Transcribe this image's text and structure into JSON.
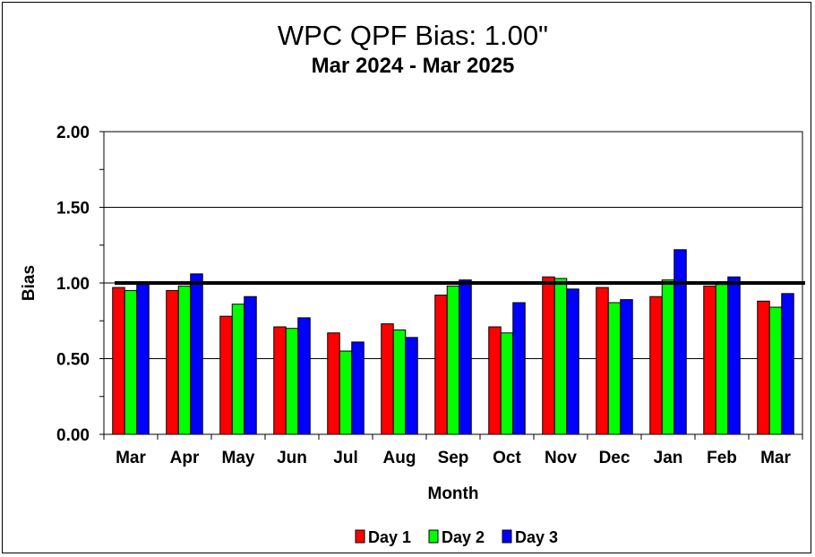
{
  "chart_data": {
    "type": "bar",
    "title": "WPC QPF Bias:  1.00\"",
    "subtitle": "Mar 2024 - Mar 2025",
    "xlabel": "Month",
    "ylabel": "Bias",
    "ylim": [
      0,
      2
    ],
    "yticks": [
      "0.00",
      "0.50",
      "1.00",
      "1.50",
      "2.00"
    ],
    "reference_line": 1.0,
    "grid": "horizontal major",
    "legend_position": "bottom",
    "categories": [
      "Mar",
      "Apr",
      "May",
      "Jun",
      "Jul",
      "Aug",
      "Sep",
      "Oct",
      "Nov",
      "Dec",
      "Jan",
      "Feb",
      "Mar"
    ],
    "series": [
      {
        "name": "Day 1",
        "color": "#ff0000",
        "values": [
          0.97,
          0.95,
          0.78,
          0.71,
          0.67,
          0.73,
          0.92,
          0.71,
          1.04,
          0.97,
          0.91,
          0.98,
          0.88
        ]
      },
      {
        "name": "Day 2",
        "color": "#00ff00",
        "values": [
          0.95,
          0.98,
          0.86,
          0.7,
          0.55,
          0.69,
          0.98,
          0.67,
          1.03,
          0.87,
          1.02,
          0.99,
          0.84
        ]
      },
      {
        "name": "Day 3",
        "color": "#0000ff",
        "values": [
          1.0,
          1.06,
          0.91,
          0.77,
          0.61,
          0.64,
          1.02,
          0.87,
          0.96,
          0.89,
          1.22,
          1.04,
          0.93
        ]
      }
    ]
  }
}
